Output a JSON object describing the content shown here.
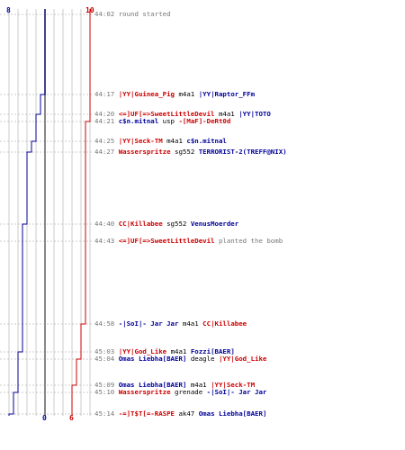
{
  "colors": {
    "terrorist": "#cc0000",
    "counter_terrorist": "#000099",
    "time": "#777777",
    "grid": "#cccccc",
    "center": "#888888"
  },
  "axis": {
    "ct_start": "8",
    "t_start": "10",
    "ct_end": "0",
    "t_end": "6"
  },
  "events": [
    {
      "time": "44:02",
      "kind": "info",
      "text": "round started"
    },
    {
      "time": "44:17",
      "kind": "kill",
      "killer": "|YY|Guinea_Pig",
      "killer_team": "t",
      "weapon": "m4a1",
      "victim": "|YY|Raptor_FFm",
      "victim_team": "ct"
    },
    {
      "time": "44:20",
      "kind": "kill",
      "killer": "<=]UF[=>SweetLittleDevil",
      "killer_team": "t",
      "weapon": "m4a1",
      "victim": "|YY|TOTO",
      "victim_team": "ct"
    },
    {
      "time": "44:21",
      "kind": "kill",
      "killer": "c$n.mitnal",
      "killer_team": "ct",
      "weapon": "usp",
      "victim": "-[MaF]-DeRt0d",
      "victim_team": "t"
    },
    {
      "time": "44:25",
      "kind": "kill",
      "killer": "|YY|Seck-TM",
      "killer_team": "t",
      "weapon": "m4a1",
      "victim": "c$n.mitnal",
      "victim_team": "ct"
    },
    {
      "time": "44:27",
      "kind": "kill",
      "killer": "Wasserspritze",
      "killer_team": "t",
      "weapon": "sg552",
      "victim": "TERRORIST-2(TREFF@NIX)",
      "victim_team": "ct"
    },
    {
      "time": "44:40",
      "kind": "kill",
      "killer": "CC|Killabee",
      "killer_team": "t",
      "weapon": "sg552",
      "victim": "VenusMoerder",
      "victim_team": "ct"
    },
    {
      "time": "44:43",
      "kind": "plant",
      "killer": "<=]UF[=>SweetLittleDevil",
      "killer_team": "t",
      "text": "planted the bomb"
    },
    {
      "time": "44:58",
      "kind": "kill",
      "killer": "-|SoI|- Jar Jar",
      "killer_team": "ct",
      "weapon": "m4a1",
      "victim": "CC|Killabee",
      "victim_team": "t"
    },
    {
      "time": "45:03",
      "kind": "kill",
      "killer": "|YY|God_Like",
      "killer_team": "t",
      "weapon": "m4a1",
      "victim": "Fozzi[BAER]",
      "victim_team": "ct"
    },
    {
      "time": "45:04",
      "kind": "kill",
      "killer": "Omas Liebha[BAER]",
      "killer_team": "ct",
      "weapon": "deagle",
      "victim": "|YY|God_Like",
      "victim_team": "t"
    },
    {
      "time": "45:09",
      "kind": "kill",
      "killer": "Omas Liebha[BAER]",
      "killer_team": "ct",
      "weapon": "m4a1",
      "victim": "|YY|Seck-TM",
      "victim_team": "t"
    },
    {
      "time": "45:10",
      "kind": "kill",
      "killer": "Wasserspritze",
      "killer_team": "t",
      "weapon": "grenade",
      "victim": "-|SoI|- Jar Jar",
      "victim_team": "ct"
    },
    {
      "time": "45:14",
      "kind": "kill",
      "killer": "-=]T$T[=-RASPE",
      "killer_team": "t",
      "weapon": "ak47",
      "victim": "Omas Liebha[BAER]",
      "victim_team": "ct"
    }
  ],
  "alive_steps": {
    "ct": [
      8,
      7,
      6,
      6,
      5,
      4,
      3,
      3,
      3,
      2,
      2,
      2,
      1,
      0
    ],
    "t": [
      10,
      10,
      10,
      9,
      9,
      9,
      9,
      9,
      8,
      8,
      7,
      6,
      6,
      6
    ]
  }
}
